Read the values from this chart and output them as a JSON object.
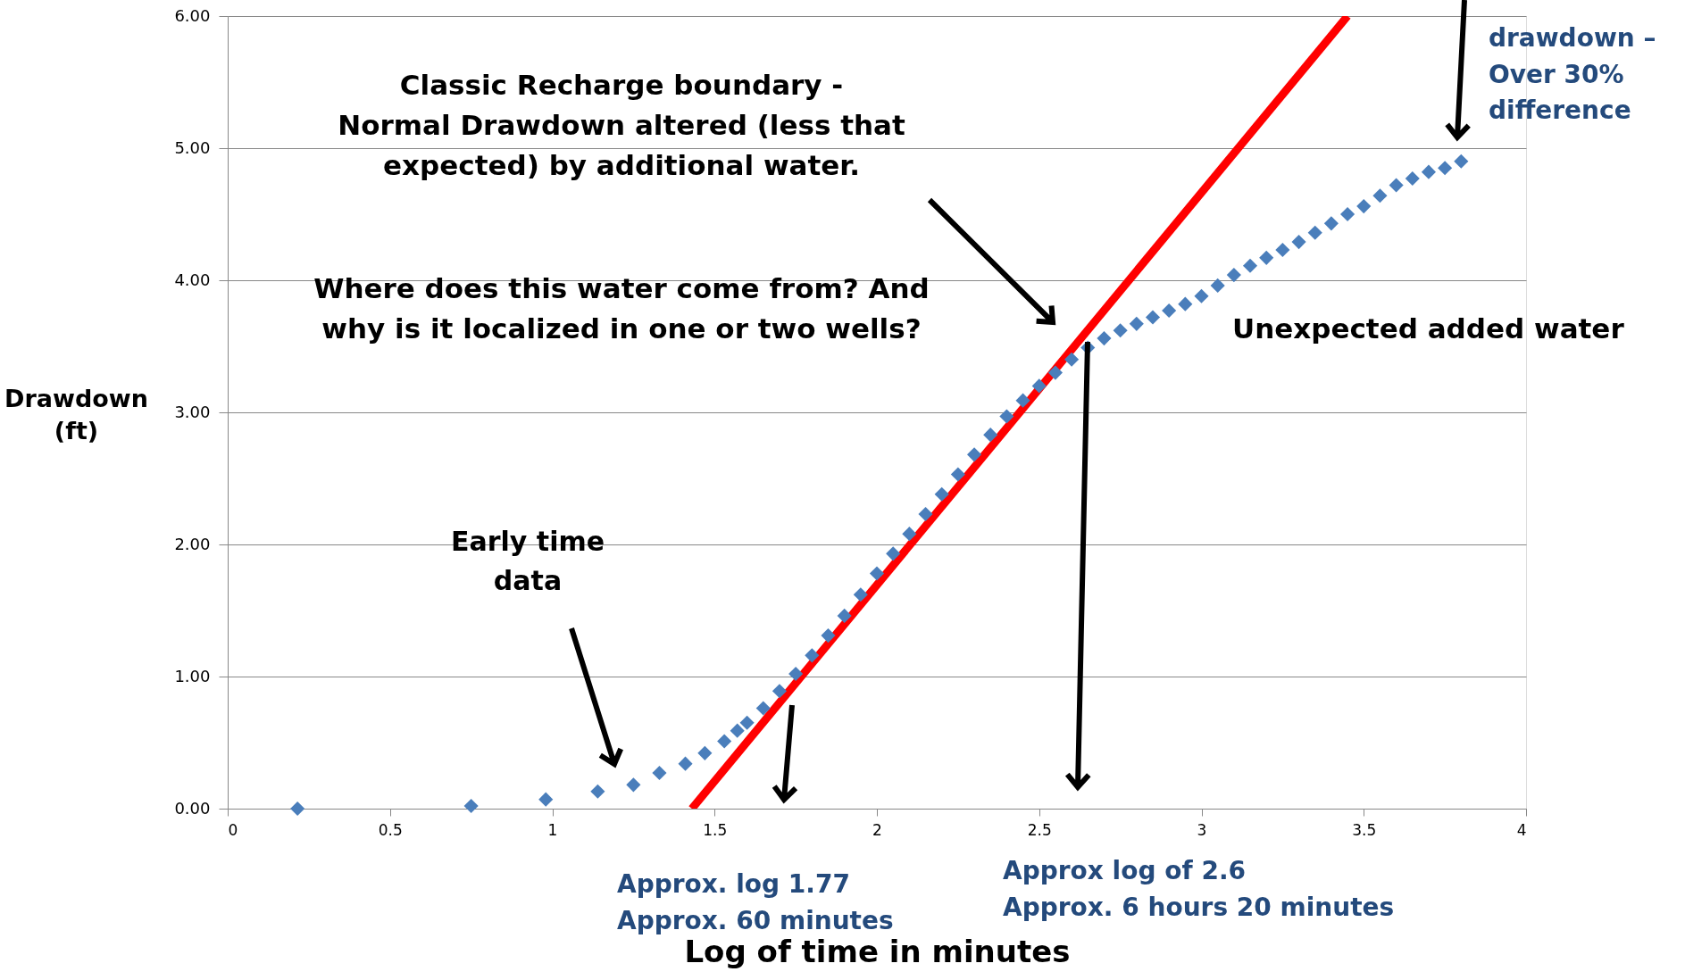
{
  "chart_data": {
    "type": "scatter",
    "xlabel": "Log of time in minutes",
    "ylabel": "Drawdown\n(ft)",
    "xlim": [
      0,
      4
    ],
    "xticks": [
      0,
      0.5,
      1,
      1.5,
      2,
      2.5,
      3,
      3.5,
      4
    ],
    "ylim": [
      0,
      6
    ],
    "yticks": [
      {
        "value": 0,
        "label": "0.00"
      },
      {
        "value": 1,
        "label": "1.00"
      },
      {
        "value": 2,
        "label": "2.00"
      },
      {
        "value": 3,
        "label": "3.00"
      },
      {
        "value": 4,
        "label": "4.00"
      },
      {
        "value": 5,
        "label": "5.00"
      },
      {
        "value": 6,
        "label": "6.00"
      }
    ],
    "grid": "y",
    "marker": "diamond",
    "series": [
      {
        "color": "#4a7ebb",
        "x": [
          0.215,
          0.75,
          0.98,
          1.14,
          1.25,
          1.33,
          1.41,
          1.47,
          1.53,
          1.57,
          1.6,
          1.65,
          1.7,
          1.75,
          1.8,
          1.85,
          1.9,
          1.95,
          2.0,
          2.05,
          2.1,
          2.15,
          2.2,
          2.25,
          2.3,
          2.35,
          2.4,
          2.45,
          2.5,
          2.55,
          2.6,
          2.65,
          2.7,
          2.75,
          2.8,
          2.85,
          2.9,
          2.95,
          3.0,
          3.05,
          3.1,
          3.15,
          3.2,
          3.25,
          3.3,
          3.35,
          3.4,
          3.45,
          3.5,
          3.55,
          3.6,
          3.65,
          3.7,
          3.75,
          3.8
        ],
        "values": [
          0.0,
          0.02,
          0.07,
          0.13,
          0.18,
          0.27,
          0.34,
          0.42,
          0.51,
          0.59,
          0.65,
          0.76,
          0.89,
          1.02,
          1.16,
          1.31,
          1.46,
          1.62,
          1.78,
          1.93,
          2.08,
          2.23,
          2.38,
          2.53,
          2.68,
          2.83,
          2.97,
          3.09,
          3.2,
          3.3,
          3.4,
          3.49,
          3.56,
          3.62,
          3.67,
          3.72,
          3.77,
          3.82,
          3.88,
          3.96,
          4.04,
          4.11,
          4.17,
          4.23,
          4.29,
          4.36,
          4.43,
          4.5,
          4.56,
          4.64,
          4.72,
          4.77,
          4.82,
          4.85,
          4.9
        ]
      },
      {
        "type": "line",
        "color": "#ff0000",
        "marker": "none",
        "line_style": "solid",
        "x": [
          1.43,
          3.45
        ],
        "values": [
          0,
          6
        ]
      }
    ],
    "annotations": [
      "Classic Recharge boundary -\nNormal Drawdown altered (less that\nexpected) by additional water.",
      "Where does this water come from? And\nwhy is it localized in one or two wells?",
      "Unexpected added water",
      "Early time\ndata",
      "drawdown –\nOver 30%\ndifference",
      "Approx. log  1.77\nApprox. 60 minutes",
      "Approx log of 2.6\nApprox. 6 hours 20 minutes"
    ]
  }
}
